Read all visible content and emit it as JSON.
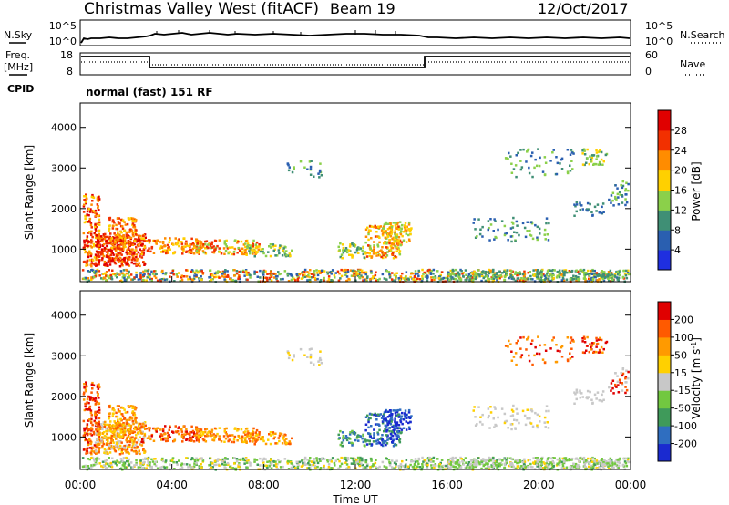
{
  "header": {
    "station": "Christmas Valley West (fitACF)",
    "beam": "Beam 19",
    "date": "12/Oct/2017"
  },
  "top_panels": {
    "nsky_label": "N.Sky",
    "nsky_ticks": [
      "10^5",
      "10^0"
    ],
    "nsearch_label": "N.Search",
    "nsearch_ticks": [
      "10^5",
      "10^0"
    ],
    "freq_label": "Freq.",
    "freq_unit": "[MHz]",
    "freq_ticks": [
      "18",
      "8"
    ],
    "nave_label": "Nave",
    "nave_ticks": [
      "60",
      "0"
    ],
    "cpid_label": "CPID",
    "cpid_text": "normal (fast) 151 RF"
  },
  "chart_data": [
    {
      "type": "heatmap",
      "name": "power",
      "ylabel": "Slant Range [km]",
      "xlabel": "",
      "yticks": [
        "1000",
        "2000",
        "3000",
        "4000"
      ],
      "ylim": [
        200,
        4600
      ],
      "colorbar": {
        "label": "Power [dB]",
        "ticks": [
          "4",
          "8",
          "12",
          "16",
          "20",
          "24",
          "28"
        ],
        "colors": [
          "#1f2fe0",
          "#2a5fb0",
          "#3f8f75",
          "#8bd04a",
          "#ffd000",
          "#ff8c00",
          "#f23000",
          "#e00000"
        ]
      }
    },
    {
      "type": "heatmap",
      "name": "velocity",
      "ylabel": "Slant Range [km]",
      "xlabel": "Time UT",
      "xticks": [
        "00:00",
        "04:00",
        "08:00",
        "12:00",
        "16:00",
        "20:00",
        "00:00"
      ],
      "yticks": [
        "1000",
        "2000",
        "3000",
        "4000"
      ],
      "ylim": [
        200,
        4600
      ],
      "colorbar": {
        "label": "Velocity [m s^-1]",
        "ticks": [
          "200",
          "100",
          "50",
          "15",
          "-15",
          "-50",
          "-100",
          "-200"
        ],
        "colors": [
          "#1a2ad0",
          "#2f6ec0",
          "#3f9a5a",
          "#72c840",
          "#c8c8c8",
          "#ffd000",
          "#ff9a00",
          "#ff5a00",
          "#e00000"
        ]
      }
    }
  ]
}
